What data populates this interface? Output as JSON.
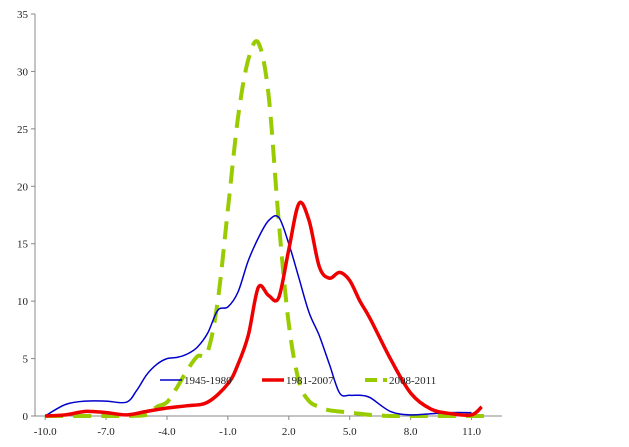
{
  "chart_data": {
    "type": "line",
    "title": "",
    "xlabel": "",
    "ylabel": "",
    "xlim": [
      -10.5,
      12.5
    ],
    "ylim": [
      0,
      35
    ],
    "x_ticks": [
      -10.0,
      -7.0,
      -4.0,
      -1.0,
      2.0,
      5.0,
      8.0,
      11.0
    ],
    "x_tick_labels": [
      "-10.0",
      "-7.0",
      "-4.0",
      "-1.0",
      "2.0",
      "5.0",
      "8.0",
      "11.0"
    ],
    "y_ticks": [
      0,
      5,
      10,
      15,
      20,
      25,
      30,
      35
    ],
    "y_tick_labels": [
      "0",
      "5",
      "10",
      "15",
      "20",
      "25",
      "30",
      "35"
    ],
    "grid": false,
    "legend_position": "inside-lower-center",
    "series": [
      {
        "name": "1945-1980",
        "color": "#0000cc",
        "style": "solid",
        "x": [
          -10.0,
          -9.0,
          -8.0,
          -7.0,
          -6.0,
          -5.5,
          -5.0,
          -4.5,
          -4.0,
          -3.5,
          -3.0,
          -2.5,
          -2.0,
          -1.5,
          -1.0,
          -0.5,
          0.0,
          0.5,
          1.0,
          1.5,
          2.0,
          2.5,
          3.0,
          3.5,
          4.0,
          4.5,
          5.0,
          5.5,
          6.0,
          7.0,
          8.0,
          9.0,
          10.0,
          11.0
        ],
        "y": [
          0.0,
          1.0,
          1.3,
          1.3,
          1.2,
          2.2,
          3.6,
          4.5,
          5.0,
          5.1,
          5.4,
          6.0,
          7.2,
          9.2,
          9.5,
          10.8,
          13.5,
          15.5,
          17.0,
          17.3,
          15.0,
          12.0,
          9.0,
          7.0,
          4.5,
          2.0,
          1.8,
          1.8,
          1.6,
          0.4,
          0.1,
          0.2,
          0.3,
          0.3
        ]
      },
      {
        "name": "1981-2007",
        "color": "#ee0000",
        "style": "solid",
        "x": [
          -10.0,
          -9.0,
          -8.0,
          -7.0,
          -6.0,
          -5.0,
          -4.0,
          -3.0,
          -2.0,
          -1.0,
          -0.5,
          0.0,
          0.5,
          1.0,
          1.5,
          2.0,
          2.5,
          3.0,
          3.5,
          4.0,
          4.5,
          5.0,
          5.5,
          6.0,
          7.0,
          8.0,
          9.0,
          10.0,
          11.0,
          11.5
        ],
        "y": [
          0.0,
          0.1,
          0.4,
          0.3,
          0.1,
          0.4,
          0.7,
          0.9,
          1.2,
          2.8,
          4.5,
          7.0,
          11.2,
          10.5,
          10.3,
          14.5,
          18.5,
          17.0,
          13.0,
          12.0,
          12.5,
          11.8,
          10.0,
          8.5,
          5.0,
          2.0,
          0.6,
          0.2,
          0.1,
          0.8
        ]
      },
      {
        "name": "2008-2011",
        "color": "#99cc00",
        "style": "dashed",
        "x": [
          -10.0,
          -7.0,
          -6.0,
          -5.0,
          -4.5,
          -4.0,
          -3.5,
          -3.0,
          -2.5,
          -2.0,
          -1.5,
          -1.0,
          -0.5,
          0.0,
          0.5,
          1.0,
          1.5,
          2.0,
          2.5,
          3.0,
          3.5,
          4.0,
          5.0,
          6.0,
          7.0,
          8.0,
          9.0,
          10.0,
          11.0,
          12.0
        ],
        "y": [
          0.0,
          0.0,
          0.0,
          0.1,
          0.8,
          1.2,
          2.5,
          4.0,
          5.2,
          5.6,
          10.0,
          18.0,
          26.0,
          31.0,
          32.5,
          28.0,
          17.0,
          8.0,
          3.0,
          1.3,
          0.8,
          0.5,
          0.3,
          0.1,
          0.0,
          0.0,
          0.0,
          0.0,
          0.0,
          0.0
        ]
      }
    ]
  }
}
